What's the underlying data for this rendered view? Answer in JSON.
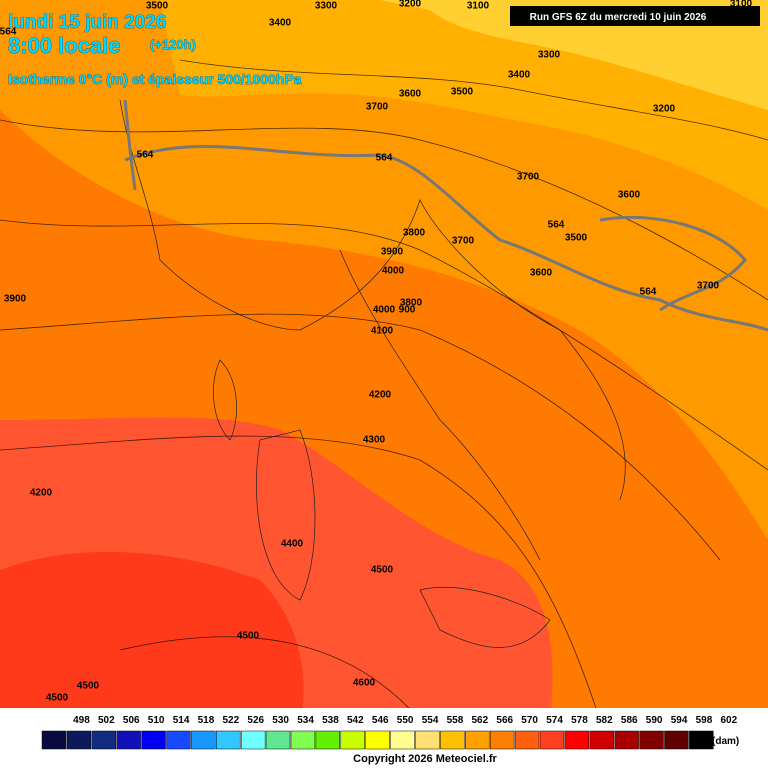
{
  "header": {
    "date": "lundi 15 juin 2026",
    "time": "8:00 locale",
    "lead": "(+120h)",
    "subtitle": "Isotherme 0°C (m) et épaisseur 500/1000hPa",
    "run": "Run GFS 6Z du mercredi 10 juin 2026"
  },
  "contour_labels": [
    "3500",
    "3300",
    "3200",
    "3100",
    "3100",
    "3400",
    "3300",
    "3400",
    "3600",
    "3500",
    "3700",
    "3200",
    "564",
    "564",
    "3700",
    "3600",
    "564",
    "3500",
    "3800",
    "3700",
    "3900",
    "4000",
    "3600",
    "3700",
    "564",
    "3900",
    "3800",
    "4000",
    "900",
    "4100",
    "4200",
    "4300",
    "4200",
    "4400",
    "4500",
    "4500",
    "4500",
    "4600",
    "4500",
    "564"
  ],
  "legend": {
    "values": [
      498,
      502,
      506,
      510,
      514,
      518,
      522,
      526,
      530,
      534,
      538,
      542,
      546,
      550,
      554,
      558,
      562,
      566,
      570,
      574,
      578,
      582,
      586,
      590,
      594,
      598,
      602
    ],
    "colors": [
      "#0a0a40",
      "#0c1a5a",
      "#102c80",
      "#1010b8",
      "#0000f0",
      "#1848ff",
      "#1898ff",
      "#30c8ff",
      "#70ffff",
      "#60e890",
      "#80ff50",
      "#60f000",
      "#c8ff00",
      "#ffff00",
      "#ffff90",
      "#ffe070",
      "#ffc000",
      "#ffa000",
      "#ff8000",
      "#ff6010",
      "#ff4020",
      "#ff0000",
      "#d00000",
      "#a80000",
      "#800000",
      "#600000",
      "#000000"
    ],
    "unit": "(dam)"
  },
  "copyright": "Copyright 2026 Meteociel.fr"
}
